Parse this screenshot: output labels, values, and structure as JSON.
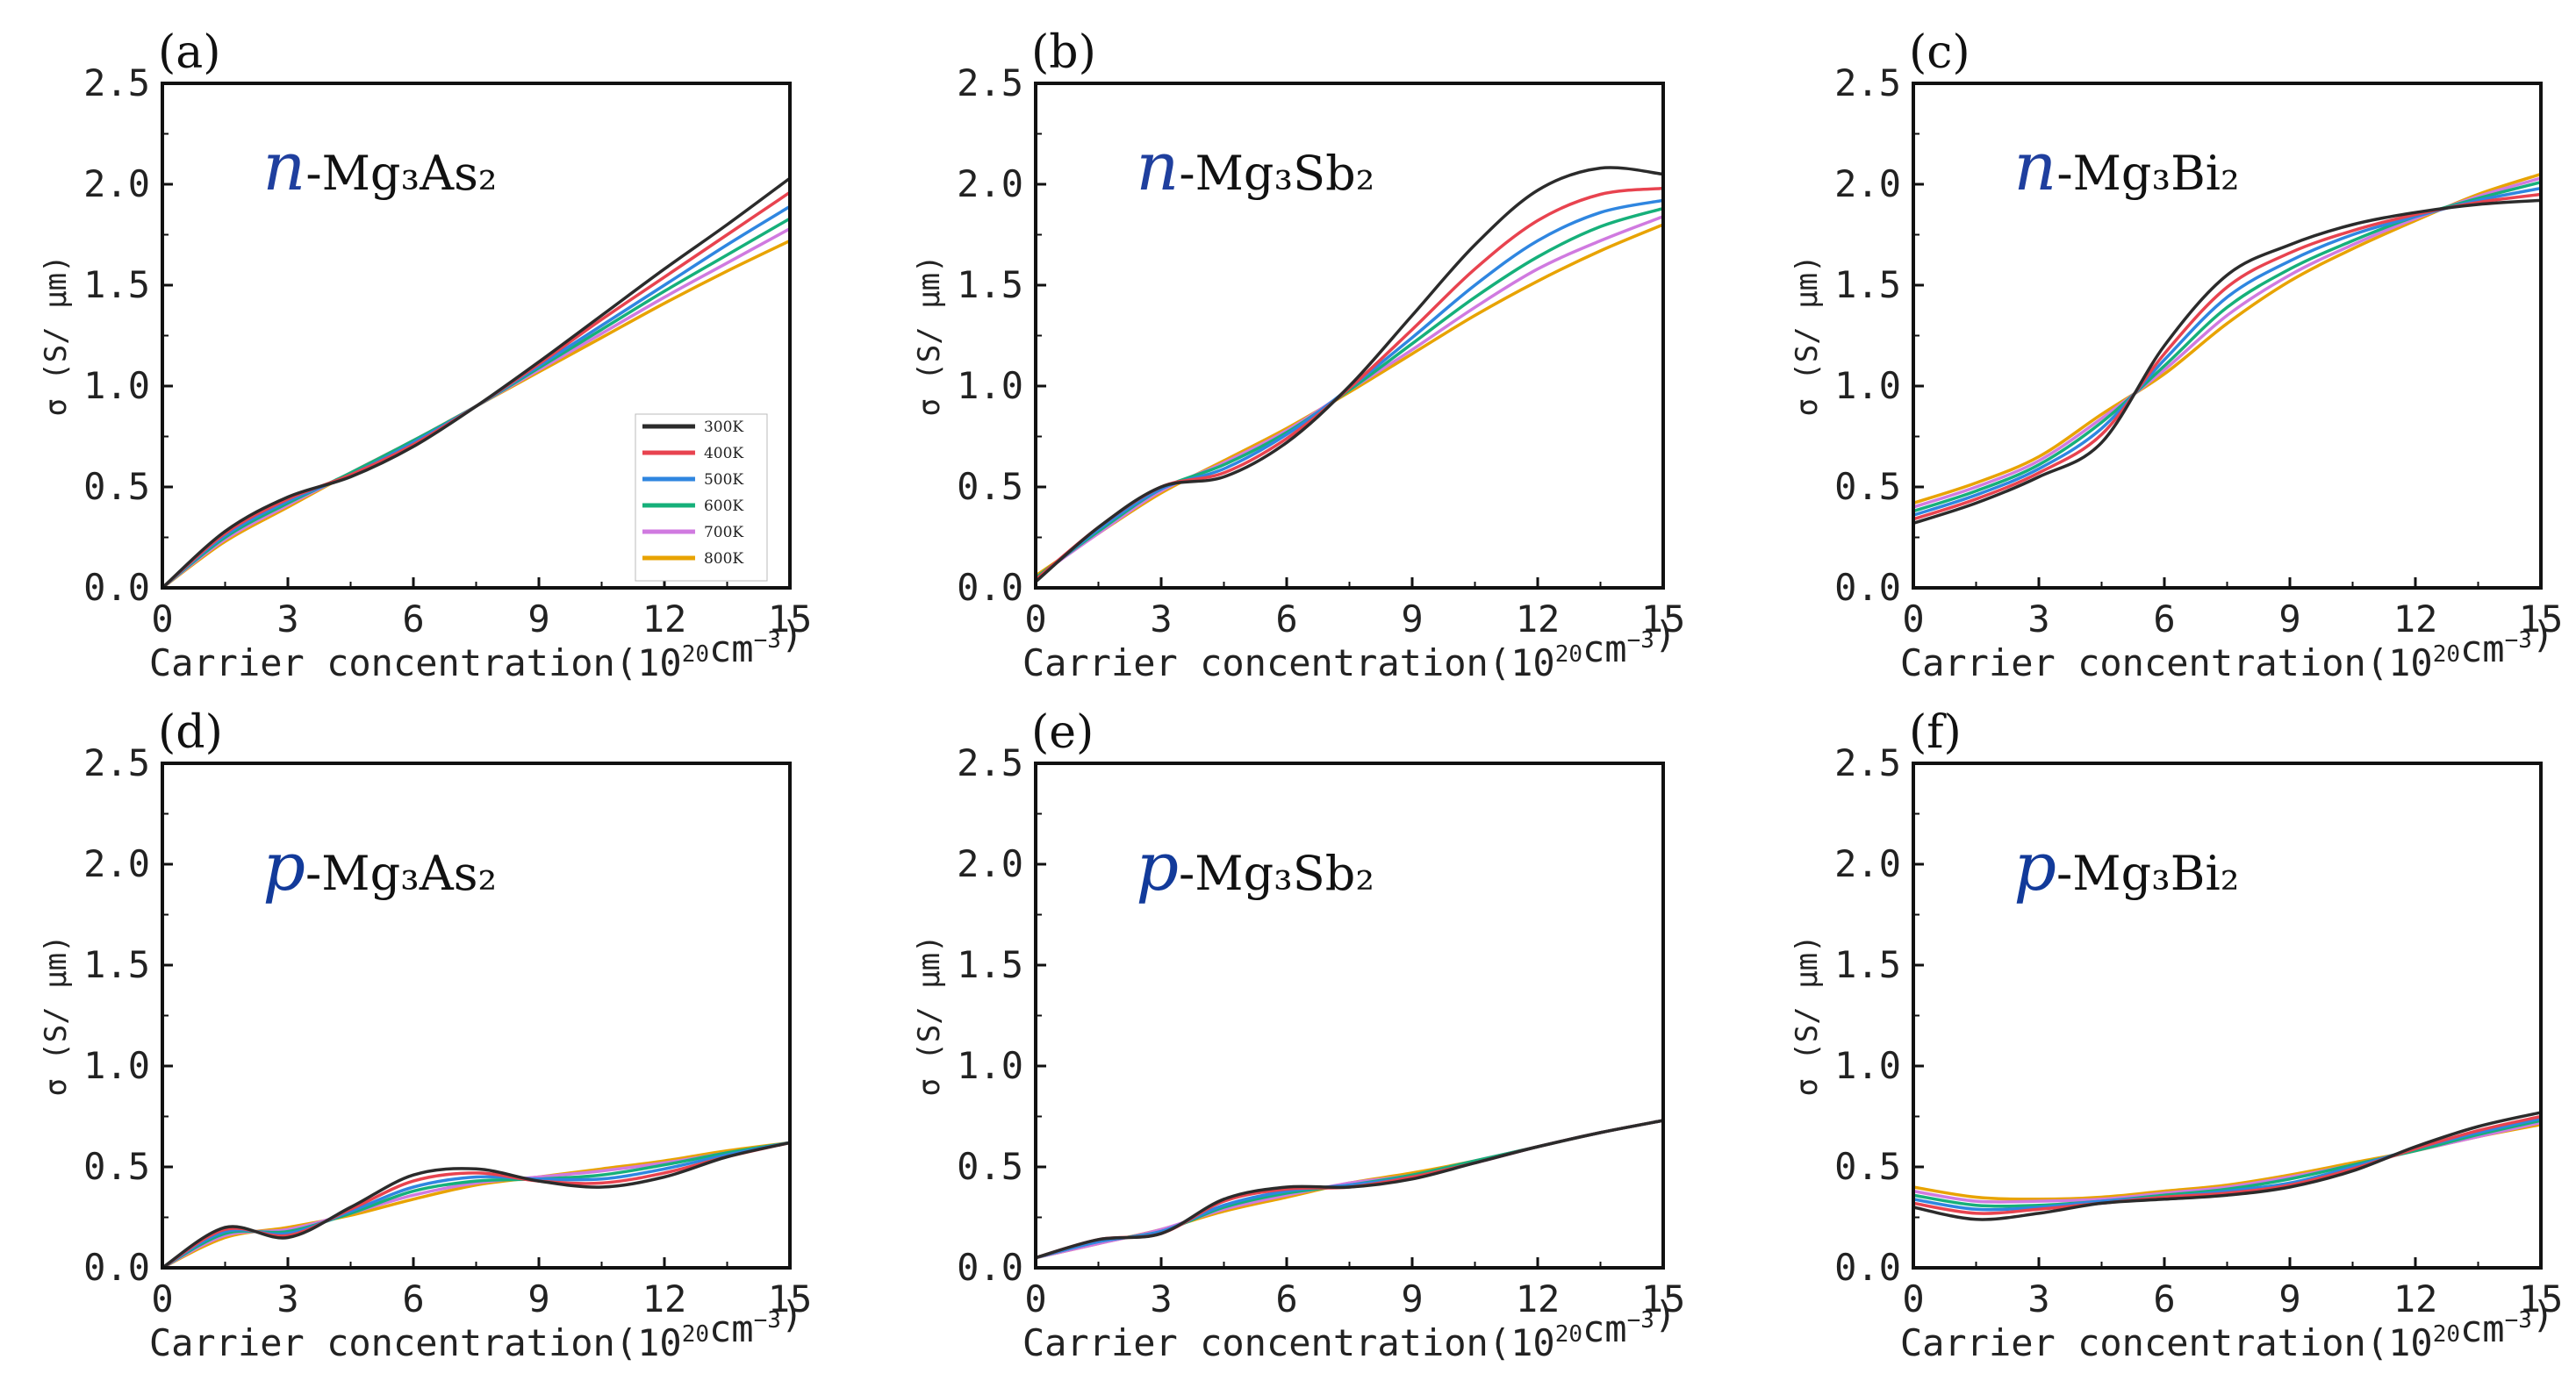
{
  "figure": {
    "y_axis_label": "σ (S/ μm)",
    "x_axis_label_prefix": "Carrier concentration(10",
    "x_axis_label_exp1": "20",
    "x_axis_label_mid": "cm",
    "x_axis_label_exp2": "−3",
    "x_axis_label_suffix": ")"
  },
  "legend": {
    "entries": [
      {
        "label": "300K",
        "color": "#2b2b2b"
      },
      {
        "label": "400K",
        "color": "#e8434f"
      },
      {
        "label": "500K",
        "color": "#2f86e0"
      },
      {
        "label": "600K",
        "color": "#16b07a"
      },
      {
        "label": "700K",
        "color": "#d07ae0"
      },
      {
        "label": "800K",
        "color": "#e8a300"
      }
    ]
  },
  "chart_data": [
    {
      "type": "line",
      "panel": "(a)",
      "carrier": "n",
      "material": "-Mg₃As₂",
      "xlim": [
        0,
        15
      ],
      "ylim": [
        0,
        2.5
      ],
      "xticks": [
        "0",
        "3",
        "6",
        "9",
        "12",
        "15"
      ],
      "yticks": [
        "0.0",
        "0.5",
        "1.0",
        "1.5",
        "2.0",
        "2.5"
      ],
      "x": [
        0,
        1.5,
        3,
        4.5,
        6,
        7.5,
        9,
        10.5,
        12,
        13.5,
        15
      ],
      "series": [
        {
          "name": "300K",
          "values": [
            0.0,
            0.28,
            0.45,
            0.55,
            0.7,
            0.9,
            1.12,
            1.35,
            1.58,
            1.8,
            2.03
          ]
        },
        {
          "name": "400K",
          "values": [
            0.0,
            0.27,
            0.44,
            0.56,
            0.71,
            0.9,
            1.11,
            1.33,
            1.54,
            1.75,
            1.96
          ]
        },
        {
          "name": "500K",
          "values": [
            0.0,
            0.26,
            0.43,
            0.56,
            0.72,
            0.9,
            1.1,
            1.3,
            1.5,
            1.7,
            1.89
          ]
        },
        {
          "name": "600K",
          "values": [
            0.0,
            0.25,
            0.42,
            0.57,
            0.73,
            0.9,
            1.09,
            1.28,
            1.47,
            1.65,
            1.83
          ]
        },
        {
          "name": "700K",
          "values": [
            0.0,
            0.24,
            0.41,
            0.57,
            0.73,
            0.9,
            1.08,
            1.26,
            1.44,
            1.61,
            1.78
          ]
        },
        {
          "name": "800K",
          "values": [
            0.0,
            0.23,
            0.4,
            0.57,
            0.73,
            0.9,
            1.07,
            1.24,
            1.41,
            1.57,
            1.72
          ]
        }
      ]
    },
    {
      "type": "line",
      "panel": "(b)",
      "carrier": "n",
      "material": "-Mg₃Sb₂",
      "xlim": [
        0,
        15
      ],
      "ylim": [
        0,
        2.5
      ],
      "xticks": [
        "0",
        "3",
        "6",
        "9",
        "12",
        "15"
      ],
      "yticks": [
        "0.0",
        "0.5",
        "1.0",
        "1.5",
        "2.0",
        "2.5"
      ],
      "x": [
        0,
        1.5,
        3,
        4.5,
        6,
        7.5,
        9,
        10.5,
        12,
        13.5,
        15
      ],
      "series": [
        {
          "name": "300K",
          "values": [
            0.03,
            0.3,
            0.5,
            0.55,
            0.72,
            1.0,
            1.35,
            1.7,
            1.97,
            2.08,
            2.05
          ]
        },
        {
          "name": "400K",
          "values": [
            0.04,
            0.3,
            0.5,
            0.57,
            0.74,
            0.99,
            1.28,
            1.58,
            1.82,
            1.95,
            1.98
          ]
        },
        {
          "name": "500K",
          "values": [
            0.04,
            0.29,
            0.49,
            0.59,
            0.76,
            0.99,
            1.24,
            1.5,
            1.72,
            1.86,
            1.92
          ]
        },
        {
          "name": "600K",
          "values": [
            0.05,
            0.28,
            0.49,
            0.61,
            0.77,
            0.98,
            1.21,
            1.44,
            1.64,
            1.79,
            1.88
          ]
        },
        {
          "name": "700K",
          "values": [
            0.05,
            0.27,
            0.48,
            0.62,
            0.78,
            0.98,
            1.18,
            1.39,
            1.58,
            1.72,
            1.84
          ]
        },
        {
          "name": "800K",
          "values": [
            0.06,
            0.27,
            0.47,
            0.63,
            0.79,
            0.97,
            1.16,
            1.35,
            1.52,
            1.67,
            1.8
          ]
        }
      ]
    },
    {
      "type": "line",
      "panel": "(c)",
      "carrier": "n",
      "material": "-Mg₃Bi₂",
      "xlim": [
        0,
        15
      ],
      "ylim": [
        0,
        2.5
      ],
      "xticks": [
        "0",
        "3",
        "6",
        "9",
        "12",
        "15"
      ],
      "yticks": [
        "0.0",
        "0.5",
        "1.0",
        "1.5",
        "2.0",
        "2.5"
      ],
      "x": [
        0,
        1.5,
        3,
        4.5,
        6,
        7.5,
        9,
        10.5,
        12,
        13.5,
        15
      ],
      "series": [
        {
          "name": "300K",
          "values": [
            0.32,
            0.42,
            0.55,
            0.72,
            1.2,
            1.55,
            1.7,
            1.8,
            1.86,
            1.9,
            1.92
          ]
        },
        {
          "name": "400K",
          "values": [
            0.34,
            0.44,
            0.57,
            0.76,
            1.16,
            1.49,
            1.66,
            1.77,
            1.85,
            1.91,
            1.95
          ]
        },
        {
          "name": "500K",
          "values": [
            0.36,
            0.46,
            0.59,
            0.79,
            1.13,
            1.44,
            1.62,
            1.75,
            1.84,
            1.92,
            1.98
          ]
        },
        {
          "name": "600K",
          "values": [
            0.38,
            0.48,
            0.61,
            0.82,
            1.1,
            1.39,
            1.58,
            1.72,
            1.84,
            1.93,
            2.01
          ]
        },
        {
          "name": "700K",
          "values": [
            0.4,
            0.5,
            0.63,
            0.84,
            1.08,
            1.35,
            1.55,
            1.7,
            1.83,
            1.94,
            2.03
          ]
        },
        {
          "name": "800K",
          "values": [
            0.42,
            0.52,
            0.65,
            0.86,
            1.06,
            1.31,
            1.52,
            1.68,
            1.82,
            1.95,
            2.05
          ]
        }
      ]
    },
    {
      "type": "line",
      "panel": "(d)",
      "carrier": "p",
      "material": "-Mg₃As₂",
      "xlim": [
        0,
        15
      ],
      "ylim": [
        0,
        2.5
      ],
      "xticks": [
        "0",
        "3",
        "6",
        "9",
        "12",
        "15"
      ],
      "yticks": [
        "0.0",
        "0.5",
        "1.0",
        "1.5",
        "2.0",
        "2.5"
      ],
      "x": [
        0,
        1.5,
        3,
        4.5,
        6,
        7.5,
        9,
        10.5,
        12,
        13.5,
        15
      ],
      "series": [
        {
          "name": "300K",
          "values": [
            0.0,
            0.2,
            0.15,
            0.3,
            0.46,
            0.49,
            0.43,
            0.4,
            0.45,
            0.55,
            0.62
          ]
        },
        {
          "name": "400K",
          "values": [
            0.0,
            0.19,
            0.16,
            0.29,
            0.43,
            0.47,
            0.43,
            0.42,
            0.47,
            0.55,
            0.62
          ]
        },
        {
          "name": "500K",
          "values": [
            0.0,
            0.18,
            0.17,
            0.28,
            0.4,
            0.45,
            0.44,
            0.44,
            0.49,
            0.56,
            0.62
          ]
        },
        {
          "name": "600K",
          "values": [
            0.0,
            0.17,
            0.18,
            0.27,
            0.38,
            0.43,
            0.44,
            0.46,
            0.51,
            0.57,
            0.62
          ]
        },
        {
          "name": "700K",
          "values": [
            0.0,
            0.16,
            0.19,
            0.27,
            0.36,
            0.42,
            0.45,
            0.48,
            0.52,
            0.57,
            0.62
          ]
        },
        {
          "name": "800K",
          "values": [
            0.0,
            0.15,
            0.2,
            0.26,
            0.34,
            0.41,
            0.45,
            0.49,
            0.53,
            0.58,
            0.62
          ]
        }
      ]
    },
    {
      "type": "line",
      "panel": "(e)",
      "carrier": "p",
      "material": "-Mg₃Sb₂",
      "xlim": [
        0,
        15
      ],
      "ylim": [
        0,
        2.5
      ],
      "xticks": [
        "0",
        "3",
        "6",
        "9",
        "12",
        "15"
      ],
      "yticks": [
        "0.0",
        "0.5",
        "1.0",
        "1.5",
        "2.0",
        "2.5"
      ],
      "x": [
        0,
        1.5,
        3,
        4.5,
        6,
        7.5,
        9,
        10.5,
        12,
        13.5,
        15
      ],
      "series": [
        {
          "name": "300K",
          "values": [
            0.05,
            0.14,
            0.17,
            0.34,
            0.4,
            0.4,
            0.44,
            0.52,
            0.6,
            0.67,
            0.73
          ]
        },
        {
          "name": "400K",
          "values": [
            0.05,
            0.14,
            0.17,
            0.33,
            0.39,
            0.4,
            0.45,
            0.52,
            0.6,
            0.67,
            0.73
          ]
        },
        {
          "name": "500K",
          "values": [
            0.05,
            0.13,
            0.18,
            0.31,
            0.38,
            0.41,
            0.45,
            0.52,
            0.6,
            0.67,
            0.73
          ]
        },
        {
          "name": "600K",
          "values": [
            0.05,
            0.13,
            0.18,
            0.3,
            0.37,
            0.41,
            0.46,
            0.53,
            0.6,
            0.67,
            0.73
          ]
        },
        {
          "name": "700K",
          "values": [
            0.05,
            0.12,
            0.19,
            0.29,
            0.36,
            0.42,
            0.46,
            0.53,
            0.6,
            0.67,
            0.73
          ]
        },
        {
          "name": "800K",
          "values": [
            0.05,
            0.12,
            0.19,
            0.28,
            0.35,
            0.42,
            0.47,
            0.53,
            0.6,
            0.67,
            0.73
          ]
        }
      ]
    },
    {
      "type": "line",
      "panel": "(f)",
      "carrier": "p",
      "material": "-Mg₃Bi₂",
      "xlim": [
        0,
        15
      ],
      "ylim": [
        0,
        2.5
      ],
      "xticks": [
        "0",
        "3",
        "6",
        "9",
        "12",
        "15"
      ],
      "yticks": [
        "0.0",
        "0.5",
        "1.0",
        "1.5",
        "2.0",
        "2.5"
      ],
      "x": [
        0,
        1.5,
        3,
        4.5,
        6,
        7.5,
        9,
        10.5,
        12,
        13.5,
        15
      ],
      "series": [
        {
          "name": "300K",
          "values": [
            0.3,
            0.24,
            0.27,
            0.32,
            0.34,
            0.36,
            0.4,
            0.48,
            0.6,
            0.7,
            0.77
          ]
        },
        {
          "name": "400K",
          "values": [
            0.32,
            0.27,
            0.29,
            0.32,
            0.35,
            0.37,
            0.41,
            0.49,
            0.59,
            0.68,
            0.75
          ]
        },
        {
          "name": "500K",
          "values": [
            0.34,
            0.29,
            0.3,
            0.33,
            0.35,
            0.38,
            0.42,
            0.5,
            0.59,
            0.67,
            0.74
          ]
        },
        {
          "name": "600K",
          "values": [
            0.36,
            0.31,
            0.31,
            0.33,
            0.36,
            0.39,
            0.44,
            0.51,
            0.58,
            0.66,
            0.73
          ]
        },
        {
          "name": "700K",
          "values": [
            0.38,
            0.33,
            0.33,
            0.34,
            0.37,
            0.4,
            0.45,
            0.51,
            0.58,
            0.65,
            0.72
          ]
        },
        {
          "name": "800K",
          "values": [
            0.4,
            0.35,
            0.34,
            0.35,
            0.38,
            0.41,
            0.46,
            0.52,
            0.58,
            0.65,
            0.71
          ]
        }
      ]
    }
  ]
}
